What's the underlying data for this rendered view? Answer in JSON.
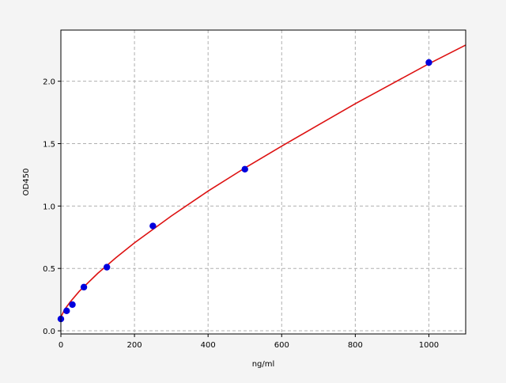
{
  "chart_data": {
    "type": "scatter",
    "title": "",
    "xlabel": "ng/ml",
    "ylabel": "OD450",
    "xlim": [
      0,
      1100
    ],
    "ylim": [
      -0.025,
      2.41
    ],
    "xticks": [
      0,
      200,
      400,
      600,
      800,
      1000
    ],
    "xtick_labels": [
      "0",
      "200",
      "400",
      "600",
      "800",
      "1000"
    ],
    "yticks": [
      0.0,
      0.5,
      1.0,
      1.5,
      2.0
    ],
    "ytick_labels": [
      "0.0",
      "0.5",
      "1.0",
      "1.5",
      "2.0"
    ],
    "grid": true,
    "series": [
      {
        "kind": "points",
        "color": "#0000dd",
        "x": [
          0,
          15.6,
          31.25,
          62.5,
          125,
          250,
          500,
          1000
        ],
        "y": [
          0.095,
          0.16,
          0.21,
          0.35,
          0.51,
          0.84,
          1.295,
          2.15
        ]
      },
      {
        "kind": "fit-curve",
        "color": "#dd1111",
        "x": [
          0,
          10,
          25,
          50,
          100,
          150,
          200,
          300,
          400,
          500,
          600,
          700,
          800,
          900,
          1000,
          1100
        ],
        "y": [
          0.11,
          0.17,
          0.23,
          0.317,
          0.46,
          0.587,
          0.705,
          0.92,
          1.12,
          1.305,
          1.48,
          1.65,
          1.82,
          1.98,
          2.14,
          2.29
        ]
      }
    ]
  }
}
